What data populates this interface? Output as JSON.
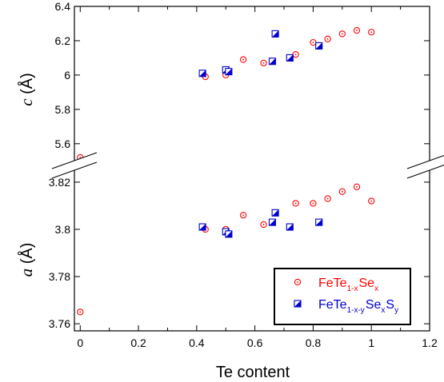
{
  "chart_data": {
    "type": "scatter",
    "xlabel": "Te content",
    "x_ticks": [
      "0",
      "0.2",
      "0.4",
      "0.6",
      "0.8",
      "1",
      "1.2"
    ],
    "xlim": [
      -0.02,
      1.2
    ],
    "colors": {
      "series1": "#ff0000",
      "series2": "#0000cc"
    },
    "panels": {
      "top": {
        "ylabel_italic": "c",
        "ylabel_unit": " (Å)",
        "ylim": [
          5.52,
          6.4
        ],
        "y_ticks": [
          "6.4",
          "6.2",
          "6",
          "5.8",
          "5.6"
        ]
      },
      "bottom": {
        "ylabel_italic": "a",
        "ylabel_unit": " (Å)",
        "ylim": [
          3.757,
          3.822
        ],
        "y_ticks": [
          "3.82",
          "3.8",
          "3.78",
          "3.76"
        ]
      }
    },
    "series": [
      {
        "legend": {
          "base": "FeTe",
          "sub1": "1-x",
          "mid": "Se",
          "sub2": "x",
          "mid2": "",
          "sub3": ""
        },
        "marker": "circle-dot",
        "c_points": [
          [
            0.0,
            5.52
          ],
          [
            0.43,
            5.99
          ],
          [
            0.5,
            6.0
          ],
          [
            0.56,
            6.09
          ],
          [
            0.63,
            6.07
          ],
          [
            0.74,
            6.12
          ],
          [
            0.8,
            6.19
          ],
          [
            0.85,
            6.21
          ],
          [
            0.9,
            6.24
          ],
          [
            0.95,
            6.26
          ],
          [
            1.0,
            6.25
          ]
        ],
        "a_points": [
          [
            0.0,
            3.765
          ],
          [
            0.43,
            3.8
          ],
          [
            0.5,
            3.8
          ],
          [
            0.56,
            3.806
          ],
          [
            0.63,
            3.802
          ],
          [
            0.74,
            3.811
          ],
          [
            0.8,
            3.811
          ],
          [
            0.85,
            3.813
          ],
          [
            0.9,
            3.816
          ],
          [
            0.95,
            3.818
          ],
          [
            1.0,
            3.812
          ]
        ]
      },
      {
        "legend": {
          "base": "FeTe",
          "sub1": "1-x-y",
          "mid": "Se",
          "sub2": "x",
          "mid2": "S",
          "sub3": "y"
        },
        "marker": "half-square",
        "c_points": [
          [
            0.42,
            6.01
          ],
          [
            0.5,
            6.03
          ],
          [
            0.51,
            6.02
          ],
          [
            0.66,
            6.08
          ],
          [
            0.67,
            6.24
          ],
          [
            0.72,
            6.1
          ],
          [
            0.82,
            6.17
          ]
        ],
        "a_points": [
          [
            0.42,
            3.801
          ],
          [
            0.5,
            3.799
          ],
          [
            0.51,
            3.798
          ],
          [
            0.66,
            3.803
          ],
          [
            0.67,
            3.807
          ],
          [
            0.72,
            3.801
          ],
          [
            0.82,
            3.803
          ]
        ]
      }
    ]
  }
}
